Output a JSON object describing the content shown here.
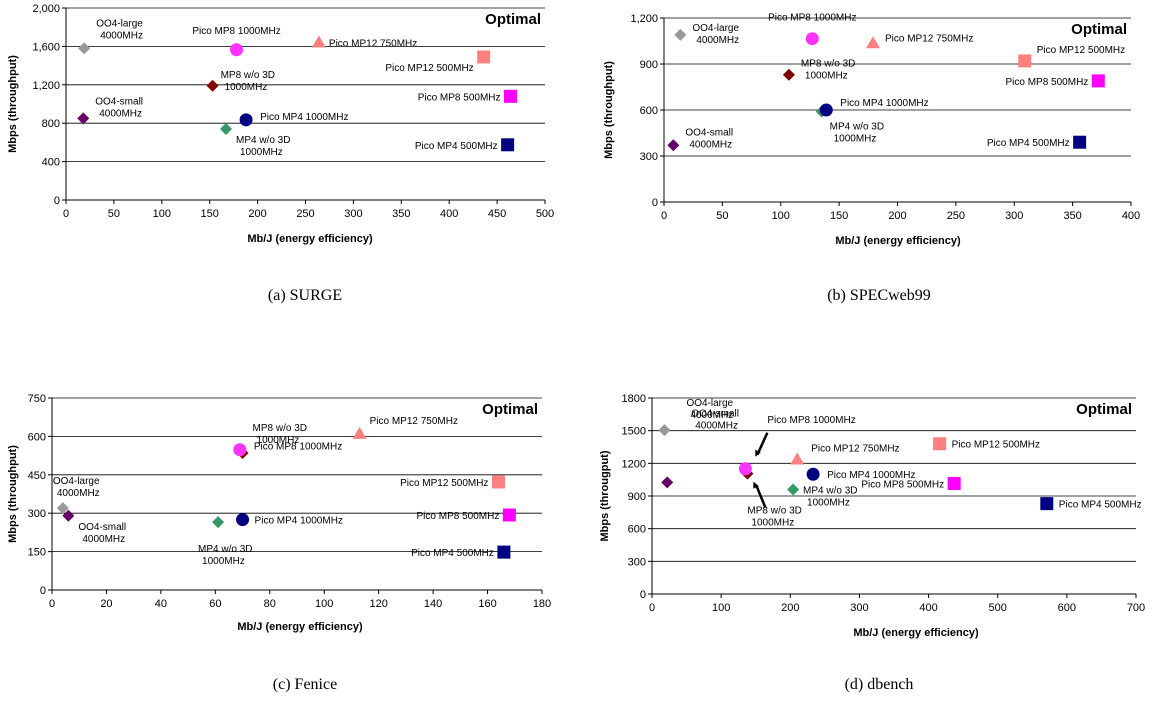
{
  "colors": {
    "oo4_large": "#999999",
    "oo4_small": "#660066",
    "mp8_wo3d": "#800000",
    "mp4_wo3d": "#339966",
    "pico_mp8_1000": "#ff33ff",
    "pico_mp12_750": "#ff8080",
    "pico_mp4_1000": "#000080",
    "pico_mp12_500": "#ff8080",
    "pico_mp8_500": "#ff00ff",
    "pico_mp4_500": "#000080"
  },
  "chart_data": [
    {
      "type": "scatter",
      "caption": "(a) SURGE",
      "corner_label": "Optimal",
      "xlabel": "Mb/J (energy efficiency)",
      "ylabel": "Mbps (throughput)",
      "xlim": [
        0,
        500
      ],
      "ylim": [
        0,
        2000
      ],
      "xticks": [
        "0",
        "50",
        "100",
        "150",
        "200",
        "250",
        "300",
        "350",
        "400",
        "450",
        "500"
      ],
      "yticks": [
        "0",
        "400",
        "800",
        "1,200",
        "1,600",
        "2,000"
      ],
      "grid": "horizontal",
      "points": [
        {
          "label": "OO4-large\n4000MHz",
          "x": 19,
          "y": 1580,
          "marker": "diamond",
          "color": "#999999"
        },
        {
          "label": "OO4-small\n4000MHz",
          "x": 18,
          "y": 850,
          "marker": "diamond",
          "color": "#660066"
        },
        {
          "label": "MP8 w/o 3D\n1000MHz",
          "x": 153,
          "y": 1190,
          "marker": "diamond",
          "color": "#800000"
        },
        {
          "label": "MP4 w/o 3D\n1000MHz",
          "x": 167,
          "y": 740,
          "marker": "diamond",
          "color": "#339966"
        },
        {
          "label": "Pico MP8 1000MHz",
          "x": 178,
          "y": 1565,
          "marker": "circle",
          "color": "#ff33ff"
        },
        {
          "label": "Pico MP12 750MHz",
          "x": 264,
          "y": 1640,
          "marker": "triangle",
          "color": "#ff8080"
        },
        {
          "label": "Pico MP4 1000MHz",
          "x": 188,
          "y": 835,
          "marker": "circle",
          "color": "#000080"
        },
        {
          "label": "Pico MP12 500MHz",
          "x": 436,
          "y": 1490,
          "marker": "square",
          "color": "#ff8080"
        },
        {
          "label": "Pico MP8 500MHz",
          "x": 464,
          "y": 1080,
          "marker": "square",
          "color": "#ff00ff"
        },
        {
          "label": "Pico MP4 500MHz",
          "x": 461,
          "y": 575,
          "marker": "square",
          "color": "#000080"
        }
      ]
    },
    {
      "type": "scatter",
      "caption": "(b) SPECweb99",
      "corner_label": "Optimal",
      "xlabel": "Mb/J (energy efficiency)",
      "ylabel": "Mbps (throughput)",
      "xlim": [
        0,
        400
      ],
      "ylim": [
        0,
        1200
      ],
      "xticks": [
        "0",
        "50",
        "100",
        "150",
        "200",
        "250",
        "300",
        "350",
        "400"
      ],
      "yticks": [
        "0",
        "300",
        "600",
        "900",
        "1,200"
      ],
      "grid": "horizontal",
      "points": [
        {
          "label": "OO4-large\n4000MHz",
          "x": 14,
          "y": 1090,
          "marker": "diamond",
          "color": "#999999"
        },
        {
          "label": "OO4-small\n4000MHz",
          "x": 8,
          "y": 370,
          "marker": "diamond",
          "color": "#660066"
        },
        {
          "label": "MP8 w/o 3D\n1000MHz",
          "x": 107,
          "y": 830,
          "marker": "diamond",
          "color": "#800000"
        },
        {
          "label": "MP4 w/o 3D\n1000MHz",
          "x": 135,
          "y": 590,
          "marker": "diamond",
          "color": "#339966"
        },
        {
          "label": "Pico MP8 1000MHz",
          "x": 127,
          "y": 1065,
          "marker": "circle",
          "color": "#ff33ff"
        },
        {
          "label": "Pico MP12 750MHz",
          "x": 179,
          "y": 1035,
          "marker": "triangle",
          "color": "#ff8080"
        },
        {
          "label": "Pico MP4 1000MHz",
          "x": 139,
          "y": 600,
          "marker": "circle",
          "color": "#000080"
        },
        {
          "label": "Pico MP12 500MHz",
          "x": 309,
          "y": 920,
          "marker": "square",
          "color": "#ff8080"
        },
        {
          "label": "Pico MP8 500MHz",
          "x": 372,
          "y": 790,
          "marker": "square",
          "color": "#ff00ff"
        },
        {
          "label": "Pico MP4 500MHz",
          "x": 356,
          "y": 390,
          "marker": "square",
          "color": "#000080"
        }
      ]
    },
    {
      "type": "scatter",
      "caption": "(c) Fenice",
      "corner_label": "Optimal",
      "xlabel": "Mb/J (energy efficiency)",
      "ylabel": "Mbps (throughput)",
      "xlim": [
        0,
        180
      ],
      "ylim": [
        0,
        750
      ],
      "xticks": [
        "0",
        "20",
        "40",
        "60",
        "80",
        "100",
        "120",
        "140",
        "160",
        "180"
      ],
      "yticks": [
        "0",
        "150",
        "300",
        "450",
        "600",
        "750"
      ],
      "grid": "horizontal",
      "points": [
        {
          "label": "OO4-large\n4000MHz",
          "x": 4,
          "y": 320,
          "marker": "diamond",
          "color": "#999999"
        },
        {
          "label": "OO4-small\n4000MHz",
          "x": 6,
          "y": 290,
          "marker": "diamond",
          "color": "#660066"
        },
        {
          "label": "MP8 w/o 3D\n1000MHz",
          "x": 70,
          "y": 535,
          "marker": "diamond",
          "color": "#800000"
        },
        {
          "label": "MP4 w/o 3D\n1000MHz",
          "x": 61,
          "y": 265,
          "marker": "diamond",
          "color": "#339966"
        },
        {
          "label": "Pico MP8 1000MHz",
          "x": 69,
          "y": 548,
          "marker": "circle",
          "color": "#ff33ff"
        },
        {
          "label": "Pico MP12 750MHz",
          "x": 113,
          "y": 610,
          "marker": "triangle",
          "color": "#ff8080"
        },
        {
          "label": "Pico MP4 1000MHz",
          "x": 70,
          "y": 275,
          "marker": "circle",
          "color": "#000080"
        },
        {
          "label": "Pico MP12 500MHz",
          "x": 164,
          "y": 422,
          "marker": "square",
          "color": "#ff8080"
        },
        {
          "label": "Pico MP8 500MHz",
          "x": 168,
          "y": 293,
          "marker": "square",
          "color": "#ff00ff"
        },
        {
          "label": "Pico MP4 500MHz",
          "x": 166,
          "y": 148,
          "marker": "square",
          "color": "#000080"
        }
      ]
    },
    {
      "type": "scatter",
      "caption": "(d) dbench",
      "corner_label": "Optimal",
      "xlabel": "Mb/J (energy efficiency)",
      "ylabel": "Mbps (througput)",
      "xlim": [
        0,
        700
      ],
      "ylim": [
        0,
        1800
      ],
      "xticks": [
        "0",
        "100",
        "200",
        "300",
        "400",
        "500",
        "600",
        "700"
      ],
      "yticks": [
        "0",
        "300",
        "600",
        "900",
        "1200",
        "1500",
        "1800"
      ],
      "grid": "horizontal",
      "points": [
        {
          "label": "OO4-large\n4000MHz",
          "x": 18,
          "y": 1505,
          "marker": "diamond",
          "color": "#999999"
        },
        {
          "label": "OO4-small\n4000MHz",
          "x": 22,
          "y": 1025,
          "marker": "diamond",
          "color": "#660066"
        },
        {
          "label": "MP8 w/o 3D\n1000MHz",
          "x": 138,
          "y": 1105,
          "marker": "diamond",
          "color": "#800000"
        },
        {
          "label": "MP4 w/o 3D\n1000MHz",
          "x": 204,
          "y": 960,
          "marker": "diamond",
          "color": "#339966"
        },
        {
          "label": "Pico MP8 1000MHz",
          "x": 135,
          "y": 1150,
          "marker": "circle",
          "color": "#ff33ff"
        },
        {
          "label": "Pico MP12 750MHz",
          "x": 210,
          "y": 1235,
          "marker": "triangle",
          "color": "#ff8080"
        },
        {
          "label": "Pico MP4 1000MHz",
          "x": 233,
          "y": 1100,
          "marker": "circle",
          "color": "#000080"
        },
        {
          "label": "Pico MP12 500MHz",
          "x": 416,
          "y": 1380,
          "marker": "square",
          "color": "#ff8080"
        },
        {
          "label": "Pico MP8 500MHz",
          "x": 437,
          "y": 1015,
          "marker": "square",
          "color": "#ff00ff"
        },
        {
          "label": "Pico MP4 500MHz",
          "x": 571,
          "y": 830,
          "marker": "square",
          "color": "#000080"
        }
      ]
    }
  ]
}
